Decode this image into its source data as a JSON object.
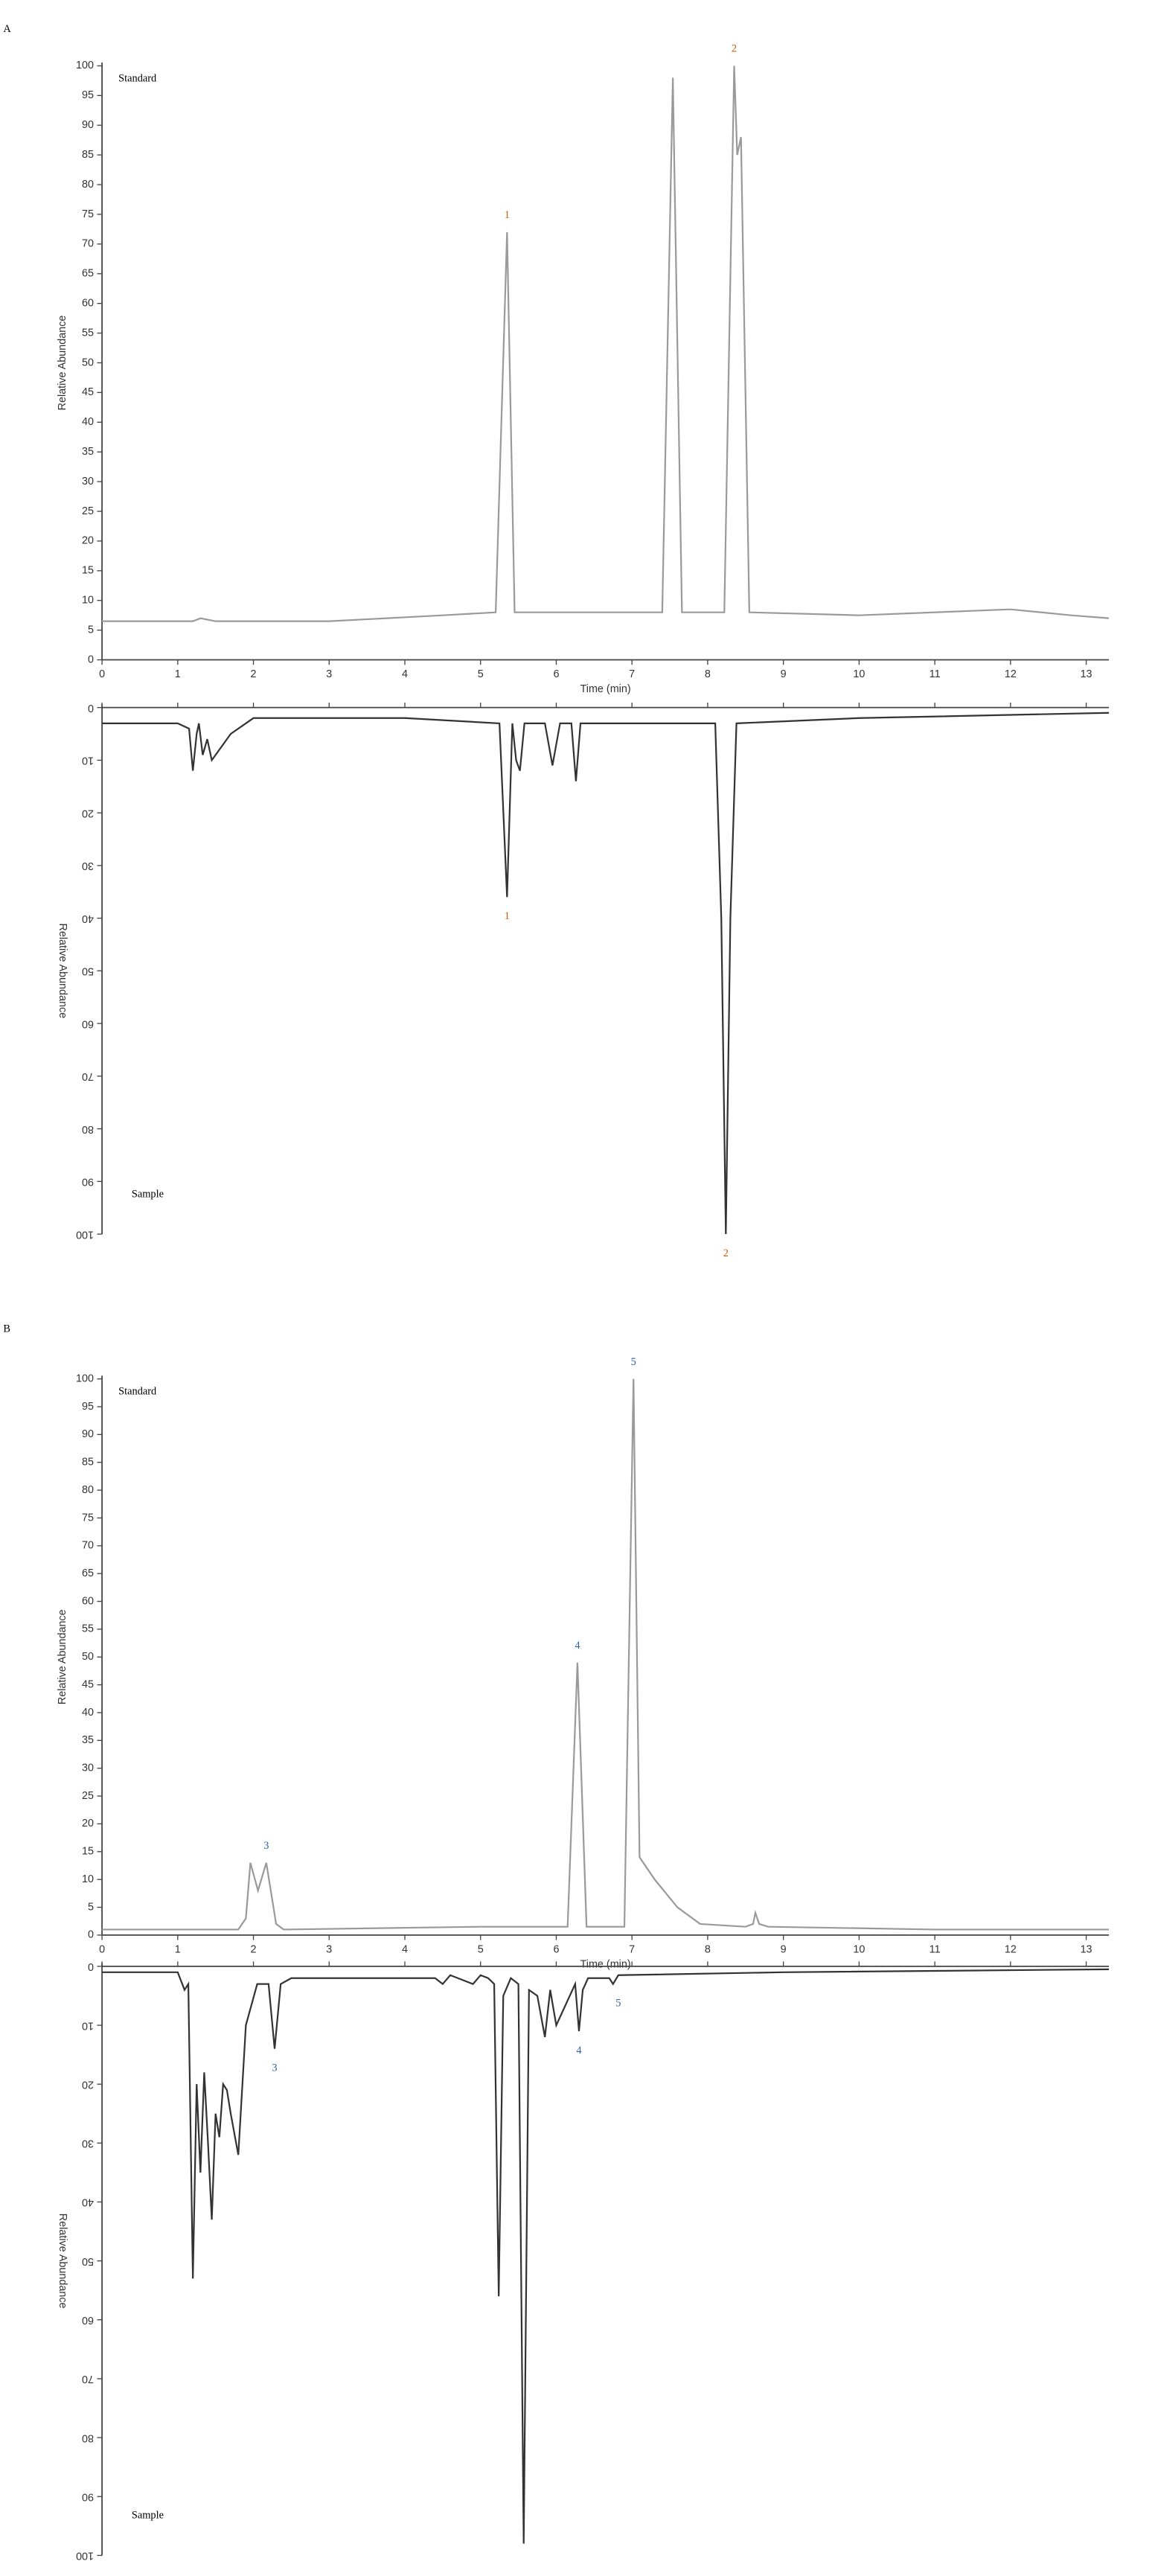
{
  "chart_data": [
    {
      "type": "line",
      "panel": "A",
      "title": "Standard",
      "y_label": "Relative Abundance",
      "x_label": "Time (min)",
      "color": "#9a9a9a",
      "annotation_color": "#c55a11",
      "x": [
        0,
        1.2,
        1.3,
        1.5,
        3,
        4.5,
        5.2,
        5.35,
        5.45,
        6,
        7.4,
        7.54,
        7.66,
        8.22,
        8.35,
        8.39,
        8.44,
        8.55,
        10,
        12,
        12.8,
        13.3
      ],
      "values": [
        6.5,
        6.5,
        7,
        6.5,
        6.5,
        7.5,
        8,
        72,
        8,
        8,
        8,
        98,
        8,
        8,
        100,
        85,
        88,
        8,
        7.5,
        8.5,
        7.5,
        7
      ],
      "xlim": [
        0,
        13.3
      ],
      "ylim": [
        0,
        100
      ],
      "xticks": [
        0,
        1,
        2,
        3,
        4,
        5,
        6,
        7,
        8,
        9,
        10,
        11,
        12,
        13
      ],
      "yticks": [
        0,
        5,
        10,
        15,
        20,
        25,
        30,
        35,
        40,
        45,
        50,
        55,
        60,
        65,
        70,
        75,
        80,
        85,
        90,
        95,
        100
      ],
      "annotations": [
        {
          "text": "1",
          "x": 5.35,
          "y": 72
        },
        {
          "text": "2",
          "x": 8.35,
          "y": 100
        }
      ]
    },
    {
      "type": "line",
      "title": "Sample",
      "y_label": "Relative Abundance",
      "inverted": true,
      "color": "#333333",
      "annotation_color": "#c55a11",
      "x": [
        0,
        1,
        1.15,
        1.2,
        1.25,
        1.28,
        1.33,
        1.39,
        1.45,
        1.7,
        2,
        4,
        5.25,
        5.35,
        5.42,
        5.47,
        5.52,
        5.58,
        5.85,
        5.95,
        6.05,
        6.2,
        6.26,
        6.32,
        8.1,
        8.18,
        8.24,
        8.3,
        8.38,
        10,
        13.3
      ],
      "values": [
        3,
        3,
        4,
        12,
        5,
        3,
        9,
        6,
        10,
        5,
        2,
        2,
        3,
        36,
        3,
        10,
        12,
        3,
        3,
        11,
        3,
        3,
        14,
        3,
        3,
        40,
        100,
        40,
        3,
        2,
        1
      ],
      "xlim": [
        0,
        13.3
      ],
      "ylim": [
        0,
        100
      ],
      "yticks": [
        0,
        10,
        20,
        30,
        40,
        50,
        60,
        70,
        80,
        90,
        100
      ],
      "annotations": [
        {
          "text": "1",
          "x": 5.35,
          "y": 36
        },
        {
          "text": "2",
          "x": 8.24,
          "y": 100
        }
      ]
    },
    {
      "type": "line",
      "panel": "B",
      "title": "Standard",
      "y_label": "Relative Abundance",
      "x_label": "Time (min)",
      "color": "#9a9a9a",
      "annotation_color": "#2e5fa8",
      "x": [
        0,
        1.8,
        1.9,
        1.96,
        2.06,
        2.17,
        2.3,
        2.4,
        5,
        6.15,
        6.28,
        6.4,
        6.9,
        7.02,
        7.1,
        7.3,
        7.6,
        7.9,
        8.5,
        8.6,
        8.63,
        8.68,
        8.8,
        11,
        13.3
      ],
      "values": [
        1,
        1,
        3,
        13,
        8,
        13,
        2,
        1,
        1.5,
        1.5,
        49,
        1.5,
        1.5,
        100,
        14,
        10,
        5,
        2,
        1.5,
        2,
        4,
        2,
        1.5,
        1,
        1
      ],
      "xlim": [
        0,
        13.3
      ],
      "ylim": [
        0,
        100
      ],
      "xticks": [
        0,
        1,
        2,
        3,
        4,
        5,
        6,
        7,
        8,
        9,
        10,
        11,
        12,
        13
      ],
      "yticks": [
        0,
        5,
        10,
        15,
        20,
        25,
        30,
        35,
        40,
        45,
        50,
        55,
        60,
        65,
        70,
        75,
        80,
        85,
        90,
        95,
        100
      ],
      "annotations": [
        {
          "text": "3",
          "x": 2.17,
          "y": 13
        },
        {
          "text": "4",
          "x": 6.28,
          "y": 49
        },
        {
          "text": "5",
          "x": 7.02,
          "y": 100
        }
      ]
    },
    {
      "type": "line",
      "title": "Sample",
      "y_label": "Relative Abundance",
      "inverted": true,
      "color": "#333333",
      "annotation_color": "#2e5fa8",
      "x": [
        0,
        1,
        1.09,
        1.14,
        1.2,
        1.25,
        1.3,
        1.35,
        1.4,
        1.45,
        1.5,
        1.55,
        1.6,
        1.65,
        1.7,
        1.8,
        1.9,
        2.05,
        2.2,
        2.28,
        2.36,
        2.5,
        4.4,
        4.5,
        4.6,
        4.9,
        5,
        5.1,
        5.18,
        5.24,
        5.3,
        5.4,
        5.5,
        5.57,
        5.64,
        5.75,
        5.85,
        5.92,
        6.0,
        6.25,
        6.3,
        6.35,
        6.42,
        6.7,
        6.75,
        6.82,
        9,
        13.3
      ],
      "values": [
        1,
        1,
        4,
        3,
        53,
        20,
        35,
        18,
        30,
        43,
        25,
        29,
        20,
        21,
        25,
        32,
        10,
        3,
        3,
        14,
        3,
        2,
        2,
        3,
        1.5,
        3,
        1.5,
        2,
        3,
        56,
        5,
        2,
        3,
        98,
        4,
        5,
        12,
        4,
        10,
        3,
        11,
        4,
        2,
        2,
        3,
        1.5,
        1,
        0.5
      ],
      "xlim": [
        0,
        13.3
      ],
      "ylim": [
        0,
        100
      ],
      "yticks": [
        0,
        10,
        20,
        30,
        40,
        50,
        60,
        70,
        80,
        90,
        100
      ],
      "annotations": [
        {
          "text": "3",
          "x": 2.28,
          "y": 14
        },
        {
          "text": "4",
          "x": 6.3,
          "y": 11
        },
        {
          "text": "5",
          "x": 6.82,
          "y": 3
        }
      ]
    }
  ]
}
